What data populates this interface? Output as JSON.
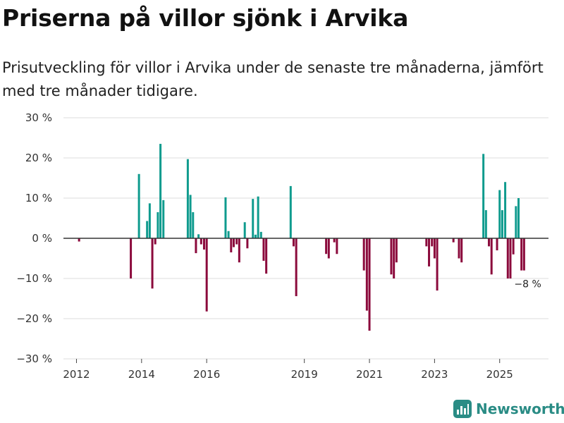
{
  "header": {
    "title": "Priserna på villor sjönk i Arvika",
    "subtitle": "Prisutveckling för villor i Arvika under de senaste tre månaderna, jämfört med tre månader tidigare."
  },
  "brand": {
    "name": "Newsworthy",
    "icon": "bar-chart-icon"
  },
  "colors": {
    "positive": "#0f9b8e",
    "negative": "#8b0a3c",
    "grid": "#dddddd",
    "zero": "#333333",
    "brand": "#2a8c85"
  },
  "chart_data": {
    "type": "bar",
    "title": "Priserna på villor sjönk i Arvika",
    "xlabel": "",
    "ylabel": "",
    "unit": "%",
    "ylim": [
      -30,
      30
    ],
    "y_ticks": [
      {
        "value": 30,
        "label": "30 %"
      },
      {
        "value": 20,
        "label": "20 %"
      },
      {
        "value": 10,
        "label": "10 %"
      },
      {
        "value": 0,
        "label": "0 %"
      },
      {
        "value": -10,
        "label": "−10 %"
      },
      {
        "value": -20,
        "label": "−20 %"
      },
      {
        "value": -30,
        "label": "−30 %"
      }
    ],
    "x_range": [
      2011.6,
      2026.5
    ],
    "x_ticks": [
      {
        "value": 2012.0,
        "label": "2012"
      },
      {
        "value": 2014.0,
        "label": "2014"
      },
      {
        "value": 2016.0,
        "label": "2016"
      },
      {
        "value": 2019.0,
        "label": "2019"
      },
      {
        "value": 2021.0,
        "label": "2021"
      },
      {
        "value": 2023.0,
        "label": "2023"
      },
      {
        "value": 2025.0,
        "label": "2025"
      }
    ],
    "grid": true,
    "series": [
      {
        "name": "Prisutveckling",
        "x": [
          2012.08,
          2013.67,
          2013.92,
          2014.17,
          2014.25,
          2014.33,
          2014.42,
          2014.5,
          2014.58,
          2014.67,
          2014.75,
          2015.42,
          2015.5,
          2015.58,
          2015.67,
          2015.75,
          2015.83,
          2015.92,
          2016.0,
          2016.58,
          2016.67,
          2016.75,
          2016.83,
          2016.92,
          2017.0,
          2017.17,
          2017.25,
          2017.42,
          2017.5,
          2017.58,
          2017.67,
          2017.75,
          2017.83,
          2017.92,
          2018.58,
          2018.67,
          2018.75,
          2019.67,
          2019.75,
          2019.92,
          2020.0,
          2020.83,
          2020.92,
          2021.0,
          2021.67,
          2021.75,
          2021.83,
          2022.75,
          2022.83,
          2022.92,
          2023.0,
          2023.08,
          2023.58,
          2023.75,
          2023.83,
          2024.5,
          2024.58,
          2024.67,
          2024.75,
          2024.92,
          2025.0,
          2025.08,
          2025.17,
          2025.25,
          2025.33,
          2025.42,
          2025.5,
          2025.58,
          2025.67,
          2025.75
        ],
        "values": [
          -0.8,
          -10,
          16,
          4.3,
          8.7,
          -12.5,
          -1.5,
          6.5,
          23.5,
          9.5,
          0,
          19.7,
          10.8,
          6.5,
          -3.7,
          1,
          -1.5,
          -2.8,
          -18.2,
          10.2,
          1.8,
          -3.5,
          -2.2,
          -1.5,
          -6,
          4,
          -2.5,
          9.8,
          0.9,
          10.4,
          1.6,
          -5.6,
          -8.8,
          0,
          13,
          -2,
          -14.4,
          -3.9,
          -5,
          -1,
          -3.9,
          -8,
          -18,
          -23,
          -9,
          -10,
          -6,
          -2,
          -7,
          -2,
          -5,
          -13,
          -1,
          -5,
          -6,
          21,
          7,
          -2,
          -9,
          -3,
          12,
          7,
          14,
          -10,
          -10,
          -4,
          8,
          10,
          -8,
          -8
        ]
      }
    ],
    "annotations": [
      {
        "x": 2025.75,
        "value": -8,
        "text": "−8 %"
      }
    ]
  }
}
